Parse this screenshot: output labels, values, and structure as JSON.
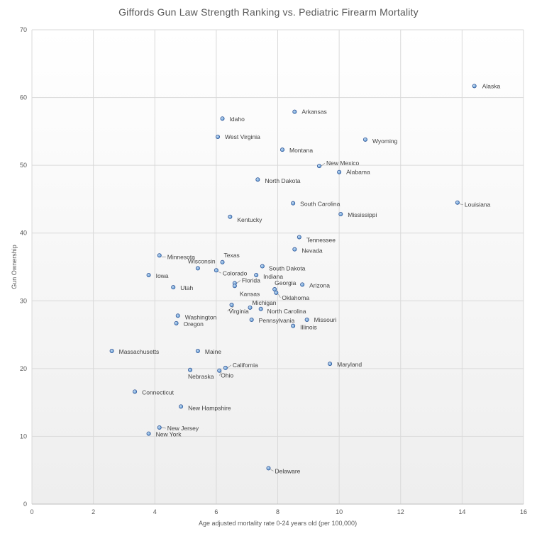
{
  "chart_data": {
    "type": "scatter",
    "title": "Giffords Gun Law Strength Ranking vs. Pediatric Firearm Mortality",
    "xlabel": "Age adjusted mortality rate 0-24 years old (per 100,000)",
    "ylabel": "Gun Ownership",
    "xlim": [
      0,
      16
    ],
    "ylim": [
      0,
      70
    ],
    "x_ticks": [
      0,
      2,
      4,
      6,
      8,
      10,
      12,
      14,
      16
    ],
    "y_ticks": [
      0,
      10,
      20,
      30,
      40,
      50,
      60,
      70
    ],
    "grid": true,
    "legend": "none",
    "marker_color": "#5b9bd5",
    "marker_edge_color": "#2f5597",
    "points": [
      {
        "label": "Alaska",
        "x": 14.4,
        "y": 61.7
      },
      {
        "label": "Idaho",
        "x": 6.2,
        "y": 56.9
      },
      {
        "label": "Arkansas",
        "x": 8.55,
        "y": 57.9
      },
      {
        "label": "West Virginia",
        "x": 6.05,
        "y": 54.2
      },
      {
        "label": "Wyoming",
        "x": 10.85,
        "y": 53.8
      },
      {
        "label": "Montana",
        "x": 8.15,
        "y": 52.3
      },
      {
        "label": "New Mexico",
        "x": 9.35,
        "y": 49.9
      },
      {
        "label": "Alabama",
        "x": 10.0,
        "y": 49.0
      },
      {
        "label": "North Dakota",
        "x": 7.35,
        "y": 47.9
      },
      {
        "label": "South Carolina",
        "x": 8.5,
        "y": 44.4
      },
      {
        "label": "Louisiana",
        "x": 13.85,
        "y": 44.5
      },
      {
        "label": "Mississippi",
        "x": 10.05,
        "y": 42.8
      },
      {
        "label": "Kentucky",
        "x": 6.45,
        "y": 42.4
      },
      {
        "label": "Tennessee",
        "x": 8.7,
        "y": 39.4
      },
      {
        "label": "Nevada",
        "x": 8.55,
        "y": 37.6
      },
      {
        "label": "Minnesota",
        "x": 4.15,
        "y": 36.7
      },
      {
        "label": "Texas",
        "x": 6.2,
        "y": 35.7
      },
      {
        "label": "Wisconsin",
        "x": 5.4,
        "y": 34.8
      },
      {
        "label": "South Dakota",
        "x": 7.5,
        "y": 35.1
      },
      {
        "label": "Colorado",
        "x": 6.0,
        "y": 34.5
      },
      {
        "label": "Iowa",
        "x": 3.8,
        "y": 33.8
      },
      {
        "label": "Indiana",
        "x": 7.3,
        "y": 33.8
      },
      {
        "label": "Florida",
        "x": 6.6,
        "y": 32.6
      },
      {
        "label": "Georgia",
        "x": 7.9,
        "y": 31.7
      },
      {
        "label": "Arizona",
        "x": 8.8,
        "y": 32.4
      },
      {
        "label": "Utah",
        "x": 4.6,
        "y": 32.0
      },
      {
        "label": "Kansas",
        "x": 6.6,
        "y": 32.2
      },
      {
        "label": "Oklahoma",
        "x": 7.95,
        "y": 31.2
      },
      {
        "label": "Michigan",
        "x": 7.1,
        "y": 29.0
      },
      {
        "label": "Virginia",
        "x": 6.5,
        "y": 29.4
      },
      {
        "label": "North Carolina",
        "x": 7.45,
        "y": 28.8
      },
      {
        "label": "Washington",
        "x": 4.75,
        "y": 27.8
      },
      {
        "label": "Pennsylvania",
        "x": 7.15,
        "y": 27.2
      },
      {
        "label": "Missouri",
        "x": 8.95,
        "y": 27.2
      },
      {
        "label": "Oregon",
        "x": 4.7,
        "y": 26.7
      },
      {
        "label": "Illinois",
        "x": 8.5,
        "y": 26.3
      },
      {
        "label": "Massachusetts",
        "x": 2.6,
        "y": 22.6
      },
      {
        "label": "Maine",
        "x": 5.4,
        "y": 22.6
      },
      {
        "label": "Maryland",
        "x": 9.7,
        "y": 20.7
      },
      {
        "label": "California",
        "x": 6.3,
        "y": 20.1
      },
      {
        "label": "Nebraska",
        "x": 5.15,
        "y": 19.8
      },
      {
        "label": "Ohio",
        "x": 6.1,
        "y": 19.7
      },
      {
        "label": "Connecticut",
        "x": 3.35,
        "y": 16.6
      },
      {
        "label": "New Hampshire",
        "x": 4.85,
        "y": 14.4
      },
      {
        "label": "New Jersey",
        "x": 4.15,
        "y": 11.3
      },
      {
        "label": "New York",
        "x": 3.8,
        "y": 10.4
      },
      {
        "label": "Delaware",
        "x": 7.7,
        "y": 5.3
      }
    ]
  }
}
